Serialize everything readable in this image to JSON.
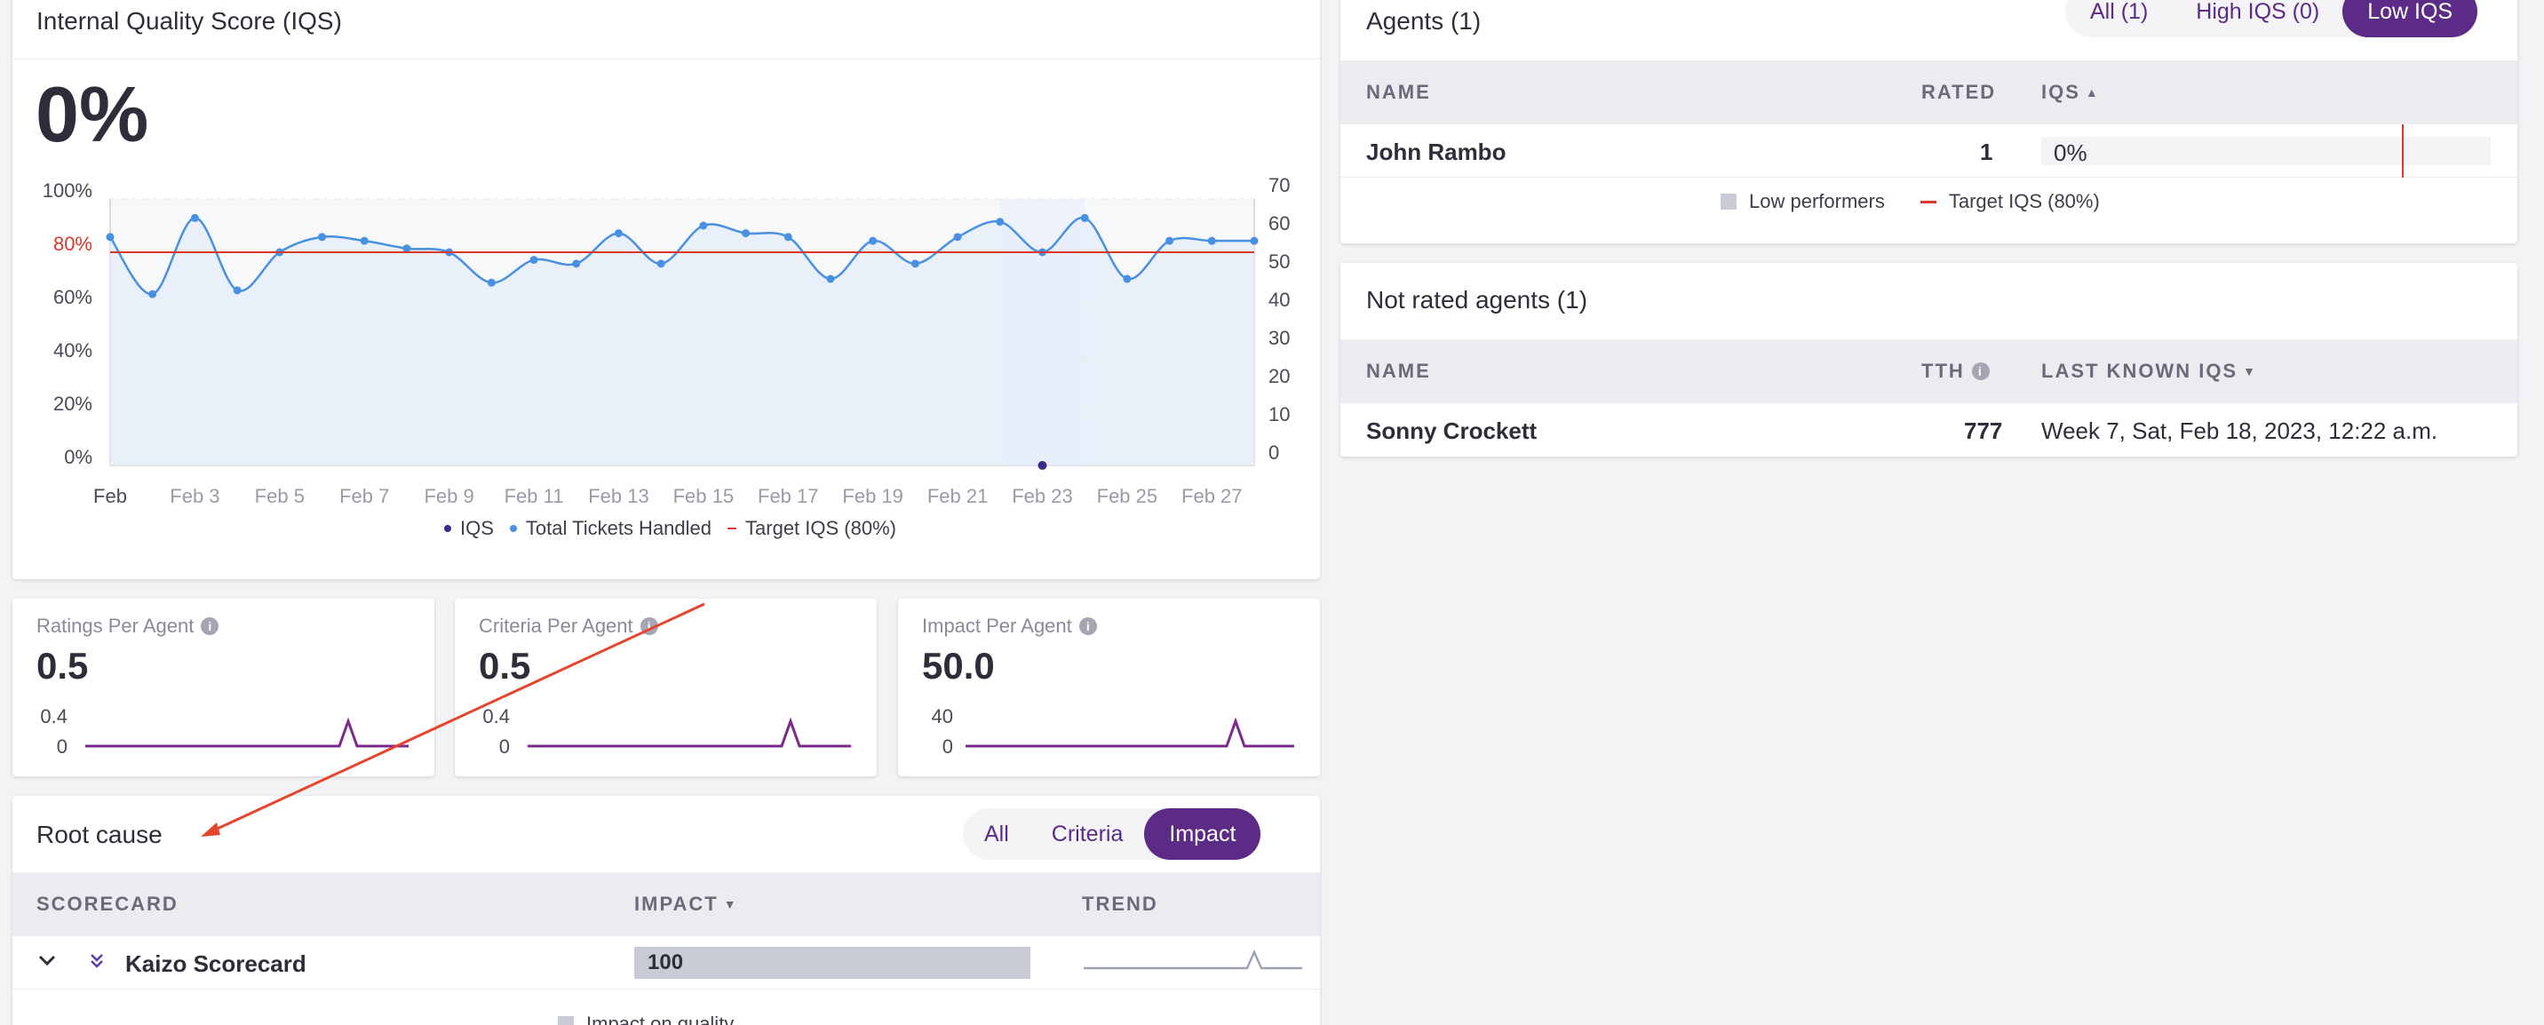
{
  "iqs_card": {
    "title": "Internal Quality Score (IQS)",
    "big_value": "0%",
    "chart_data": {
      "type": "line",
      "y_left_ticks": [
        "100%",
        "80%",
        "60%",
        "40%",
        "20%",
        "0%"
      ],
      "y_right_ticks": [
        "70",
        "60",
        "50",
        "40",
        "30",
        "20",
        "10",
        "0"
      ],
      "x_ticks": [
        "Feb",
        "Feb 3",
        "Feb 5",
        "Feb 7",
        "Feb 9",
        "Feb 11",
        "Feb 13",
        "Feb 15",
        "Feb 17",
        "Feb 19",
        "Feb 21",
        "Feb 23",
        "Feb 25",
        "Feb 27"
      ],
      "target_iqs_pct": 80,
      "ylim_left": [
        0,
        100
      ],
      "ylim_right": [
        0,
        70
      ],
      "series": [
        {
          "name": "Total Tickets Handled",
          "axis": "right",
          "color": "#4a90e2",
          "values": [
            60,
            45,
            65,
            46,
            56,
            60,
            59,
            57,
            56,
            48,
            54,
            53,
            61,
            53,
            63,
            61,
            60,
            49,
            59,
            53,
            60,
            64,
            56,
            65,
            49,
            59,
            59,
            59
          ]
        },
        {
          "name": "IQS",
          "axis": "left",
          "color": "#3a2a8a",
          "points": [
            {
              "x": "Feb 23",
              "y": 0
            }
          ]
        },
        {
          "name": "Target IQS (80%)",
          "axis": "left",
          "color": "#d9382b"
        }
      ],
      "highlight_day": "Feb 23"
    },
    "legend": {
      "iqs": "IQS",
      "tickets": "Total Tickets Handled",
      "target": "Target IQS (80%)"
    },
    "colors": {
      "iqs_dot": "#3a2a8a",
      "tickets": "#4a90e2",
      "target": "#d9382b",
      "area": "#e8eff9"
    }
  },
  "agents_card": {
    "title": "Agents (1)",
    "filters": [
      "All (1)",
      "High IQS (0)",
      "Low IQS"
    ],
    "active_filter": "Low IQS",
    "columns": {
      "name": "NAME",
      "rated": "RATED",
      "iqs": "IQS"
    },
    "rows": [
      {
        "name": "John Rambo",
        "rated": "1",
        "iqs": "0%"
      }
    ],
    "legend": {
      "low": "Low performers",
      "target": "Target IQS (80%)"
    }
  },
  "not_rated_card": {
    "title": "Not rated agents (1)",
    "columns": {
      "name": "NAME",
      "tth": "TTH",
      "last": "LAST KNOWN IQS"
    },
    "rows": [
      {
        "name": "Sonny Crockett",
        "tth": "777",
        "last": "Week 7, Sat, Feb 18, 2023, 12:22 a.m."
      }
    ]
  },
  "metrics": [
    {
      "label": "Ratings Per Agent",
      "value": "0.5",
      "top_tick": "0.4",
      "bottom_tick": "0"
    },
    {
      "label": "Criteria Per Agent",
      "value": "0.5",
      "top_tick": "0.4",
      "bottom_tick": "0"
    },
    {
      "label": "Impact Per Agent",
      "value": "50.0",
      "top_tick": "40",
      "bottom_tick": "0"
    }
  ],
  "root_cause": {
    "title": "Root cause",
    "filters": [
      "All",
      "Criteria",
      "Impact"
    ],
    "active_filter": "Impact",
    "columns": {
      "scorecard": "SCORECARD",
      "impact": "IMPACT",
      "trend": "TREND"
    },
    "rows": [
      {
        "name": "Kaizo Scorecard",
        "impact": "100"
      }
    ],
    "legend": "Impact on quality"
  },
  "accent_color": "#5b2b86"
}
